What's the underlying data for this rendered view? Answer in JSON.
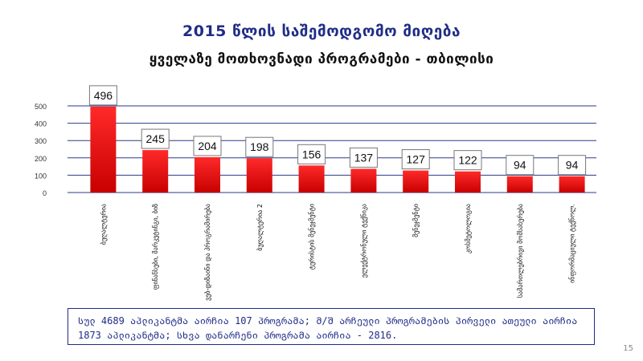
{
  "slide": {
    "title": "2015 წლის საშემოდგომო მიღება",
    "subtitle": "ყველაზე მოთხოვნადი პროგრამები - თბილისი",
    "note": "სულ 4689 აპლიკანტმა აირჩია 107 პროგრამა; მ/შ არჩეული პროგრამების პირველი ათეული აირჩია 1873 აპლიკანტმა; სხვა დანარჩენი პროგრამა აირჩია - 2816.",
    "page_number": "15"
  },
  "colors": {
    "bar_top": "#ff2a2a",
    "bar_bottom": "#c80000",
    "gridline": "#2a3a8c",
    "title": "#1f2d86"
  },
  "chart_data": {
    "type": "bar",
    "categories": [
      "ბუღალტერია",
      "ფინანსები, მარკეტინგი, ბიზ",
      "ვებ-დიზაინი და პროგრამირება",
      "ბუღალტერია 2",
      "ტურისტის მენეჯმენტი",
      "ელექტრონული ტექნიკა",
      "მენეჯმენტი",
      "კოსმეტოლოგია",
      "სამართლებრივი მომსახურება",
      "ინფორმაციული ტექნოლ."
    ],
    "values": [
      496,
      245,
      204,
      198,
      156,
      137,
      127,
      122,
      94,
      94
    ],
    "ylim": [
      0,
      500
    ],
    "yticks": [
      0,
      100,
      200,
      300,
      400,
      500
    ],
    "grid": true,
    "legend": "none"
  }
}
